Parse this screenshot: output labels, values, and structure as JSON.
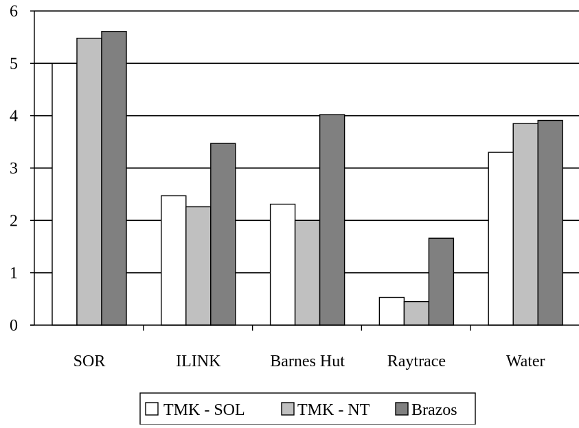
{
  "chart_data": {
    "type": "bar",
    "title": "",
    "xlabel": "",
    "ylabel": "",
    "categories": [
      "SOR",
      "ILINK",
      "Barnes Hut",
      "Raytrace",
      "Water"
    ],
    "series": [
      {
        "name": "TMK - SOL",
        "color": "#ffffff",
        "values": [
          5.0,
          2.47,
          2.31,
          0.53,
          3.3
        ]
      },
      {
        "name": "TMK - NT",
        "color": "#c0c0c0",
        "values": [
          5.48,
          2.26,
          2.0,
          0.45,
          3.85
        ]
      },
      {
        "name": "Brazos",
        "color": "#808080",
        "values": [
          5.61,
          3.47,
          4.02,
          1.66,
          3.91
        ]
      }
    ],
    "ylim": [
      0,
      6
    ],
    "yticks": [
      "0",
      "1",
      "2",
      "3",
      "4",
      "5",
      "6"
    ],
    "grid": true,
    "legend_position": "bottom"
  }
}
